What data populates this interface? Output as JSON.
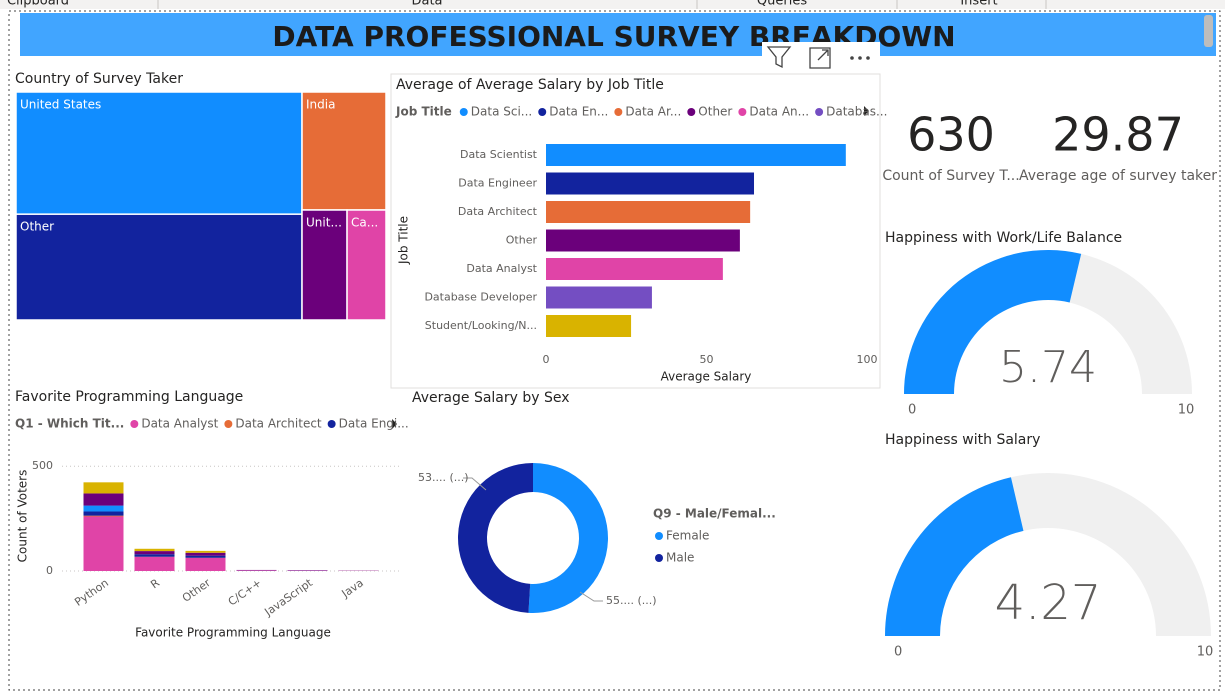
{
  "ribbon": [
    "Clipboard",
    "Data",
    "Queries",
    "Insert"
  ],
  "title": "DATA PROFESSIONAL SURVEY BREAKDOWN",
  "cards": [
    {
      "value": 630,
      "label": "Count of Survey T..."
    },
    {
      "value": 29.87,
      "label": "Average age of survey taker"
    }
  ],
  "chart_data": [
    {
      "type": "treemap",
      "title": "Country of Survey Taker",
      "categories": [
        "United States",
        "Other",
        "India",
        "Unit...",
        "Ca..."
      ],
      "values": [
        261,
        226,
        74,
        37,
        32
      ],
      "colors": [
        "#118dff",
        "#12239e",
        "#e66c37",
        "#6b007b",
        "#e044a7"
      ]
    },
    {
      "type": "hbar",
      "title": "Average of Average Salary by Job Title",
      "legend_title": "Job Title",
      "legend": [
        "Data Sci...",
        "Data En...",
        "Data Ar...",
        "Other",
        "Data An...",
        "Databas..."
      ],
      "categories": [
        "Data Scientist",
        "Data Engineer",
        "Data Architect",
        "Other",
        "Data Analyst",
        "Database Developer",
        "Student/Looking/N..."
      ],
      "values": [
        93.4,
        64.8,
        63.6,
        60.4,
        55.1,
        33.0,
        26.5
      ],
      "colors": [
        "#118dff",
        "#12239e",
        "#e66c37",
        "#6b007b",
        "#e044a7",
        "#744ec2",
        "#d9b300"
      ],
      "xlim": [
        0,
        100
      ],
      "xticks": [
        0,
        50,
        100
      ],
      "xlabel": "Average Salary",
      "ylabel": "Job Title"
    },
    {
      "type": "stacked-bar",
      "title": "Favorite Programming Language",
      "legend_title": "Q1 - Which Tit...",
      "categories": [
        "Python",
        "R",
        "Other",
        "C/C++",
        "JavaScript",
        "Java"
      ],
      "series": [
        {
          "name": "Data Analyst",
          "color": "#e044a7",
          "values": [
            260,
            67,
            62,
            3,
            2,
            1
          ]
        },
        {
          "name": "Data Architect",
          "color": "#e66c37",
          "values": [
            4,
            1,
            1,
            0,
            0,
            0
          ]
        },
        {
          "name": "Data Engi...",
          "color": "#12239e",
          "values": [
            20,
            12,
            10,
            1,
            1,
            0
          ]
        },
        {
          "name": null,
          "color": "#118dff",
          "values": [
            28,
            0,
            0,
            0,
            0,
            0
          ]
        },
        {
          "name": null,
          "color": "#6b007b",
          "values": [
            58,
            15,
            14,
            1,
            1,
            1
          ]
        },
        {
          "name": null,
          "color": "#d9b300",
          "values": [
            53,
            11,
            9,
            0,
            0,
            0
          ]
        }
      ],
      "ylim": [
        0,
        520
      ],
      "yticks": [
        0,
        500
      ],
      "xlabel": "Favorite Programming Language",
      "ylabel": "Count of Voters"
    },
    {
      "type": "donut",
      "title": "Average Salary by Sex",
      "legend_title": "Q9 - Male/Femal...",
      "categories": [
        "Female",
        "Male"
      ],
      "values": [
        55.4,
        53.3
      ],
      "value_labels": [
        "55.... (...)",
        "53.... (...)"
      ],
      "colors": [
        "#118dff",
        "#12239e"
      ]
    },
    {
      "type": "gauge",
      "title": "Happiness with Work/Life Balance",
      "value": 5.74,
      "min": 0,
      "max": 10,
      "color": "#118dff",
      "track": "#f0f0f0"
    },
    {
      "type": "gauge",
      "title": "Happiness with Salary",
      "value": 4.27,
      "min": 0,
      "max": 10,
      "color": "#118dff",
      "track": "#f0f0f0"
    }
  ]
}
